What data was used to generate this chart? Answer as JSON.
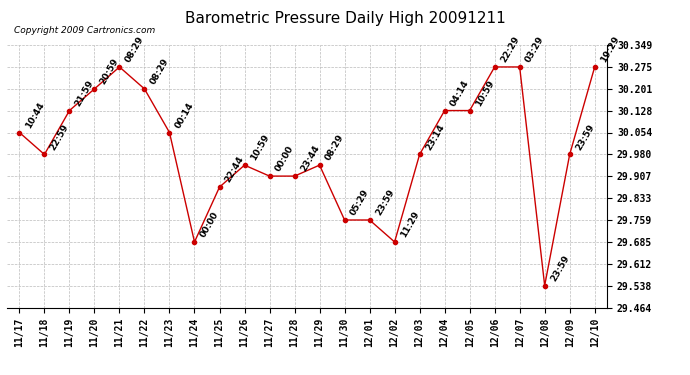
{
  "title": "Barometric Pressure Daily High 20091211",
  "copyright": "Copyright 2009 Cartronics.com",
  "x_labels": [
    "11/17",
    "11/18",
    "11/19",
    "11/20",
    "11/21",
    "11/22",
    "11/23",
    "11/24",
    "11/25",
    "11/26",
    "11/27",
    "11/28",
    "11/29",
    "11/30",
    "12/01",
    "12/02",
    "12/03",
    "12/04",
    "12/05",
    "12/06",
    "12/07",
    "12/08",
    "12/09",
    "12/10"
  ],
  "y_values": [
    30.054,
    29.98,
    30.128,
    30.201,
    30.275,
    30.201,
    30.054,
    29.685,
    29.87,
    29.944,
    29.907,
    29.907,
    29.944,
    29.759,
    29.759,
    29.685,
    29.98,
    30.128,
    30.128,
    30.275,
    30.275,
    29.538,
    29.98,
    30.275
  ],
  "point_labels": [
    "10:44",
    "22:59",
    "21:59",
    "20:59",
    "08:29",
    "08:29",
    "00:14",
    "00:00",
    "22:44",
    "10:59",
    "00:00",
    "23:44",
    "08:29",
    "05:29",
    "23:59",
    "11:29",
    "23:14",
    "04:14",
    "10:59",
    "22:29",
    "03:29",
    "23:59",
    "23:59",
    "19:29"
  ],
  "ylim_min": 29.464,
  "ylim_max": 30.349,
  "yticks": [
    29.464,
    29.538,
    29.612,
    29.685,
    29.759,
    29.833,
    29.907,
    29.98,
    30.054,
    30.128,
    30.201,
    30.275,
    30.349
  ],
  "line_color": "#cc0000",
  "marker_color": "#cc0000",
  "bg_color": "#ffffff",
  "grid_color": "#bbbbbb",
  "title_fontsize": 11,
  "tick_fontsize": 7,
  "annotation_fontsize": 6.5
}
